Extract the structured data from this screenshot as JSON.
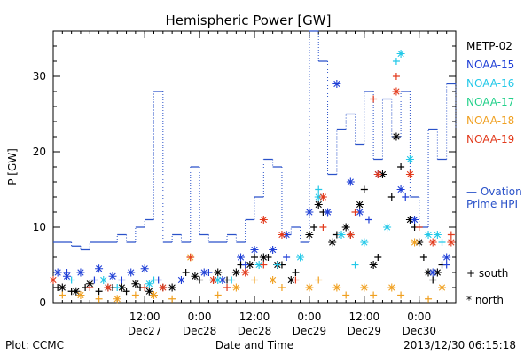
{
  "chart_data": {
    "type": "scatter",
    "title": "Hemispheric Power [GW]",
    "xlabel": "Date and Time",
    "ylabel": "P [GW]",
    "xlim": [
      "2013-12-26 16:00",
      "2013-12-30 08:00"
    ],
    "ylim": [
      0,
      36
    ],
    "yticks": [
      0,
      10,
      20,
      30
    ],
    "xticks": [
      {
        "time": "12:00",
        "date": "Dec27",
        "at": "2013-12-27 12:00"
      },
      {
        "time": "0:00",
        "date": "Dec28",
        "at": "2013-12-28 00:00"
      },
      {
        "time": "12:00",
        "date": "Dec28",
        "at": "2013-12-28 12:00"
      },
      {
        "time": "0:00",
        "date": "Dec29",
        "at": "2013-12-29 00:00"
      },
      {
        "time": "12:00",
        "date": "Dec29",
        "at": "2013-12-29 12:00"
      },
      {
        "time": "0:00",
        "date": "Dec30",
        "at": "2013-12-30 00:00"
      }
    ],
    "legend": {
      "placement": "right",
      "entries": [
        {
          "name": "METP-02",
          "color": "#000000"
        },
        {
          "name": "NOAA-15",
          "color": "#1f3fd6"
        },
        {
          "name": "NOAA-16",
          "color": "#22c8e8"
        },
        {
          "name": "NOAA-17",
          "color": "#22d08a"
        },
        {
          "name": "NOAA-18",
          "color": "#f0a020"
        },
        {
          "name": "NOAA-19",
          "color": "#e23a1c"
        }
      ],
      "ovation_label": [
        "— Ovation",
        "Prime HPI"
      ],
      "south_label": "+ south",
      "north_label": "* north"
    },
    "ovation_line": {
      "color": "#2a52c9",
      "times": [
        "2013-12-26 16:00",
        "2013-12-26 20:00",
        "2013-12-26 22:00",
        "2013-12-27 00:00",
        "2013-12-27 02:00",
        "2013-12-27 04:00",
        "2013-12-27 06:00",
        "2013-12-27 08:00",
        "2013-12-27 10:00",
        "2013-12-27 12:00",
        "2013-12-27 14:00",
        "2013-12-27 16:00",
        "2013-12-27 18:00",
        "2013-12-27 20:00",
        "2013-12-27 22:00",
        "2013-12-28 00:00",
        "2013-12-28 02:00",
        "2013-12-28 04:00",
        "2013-12-28 06:00",
        "2013-12-28 08:00",
        "2013-12-28 10:00",
        "2013-12-28 12:00",
        "2013-12-28 14:00",
        "2013-12-28 16:00",
        "2013-12-28 18:00",
        "2013-12-28 20:00",
        "2013-12-28 22:00",
        "2013-12-29 00:00",
        "2013-12-29 02:00",
        "2013-12-29 04:00",
        "2013-12-29 06:00",
        "2013-12-29 08:00",
        "2013-12-29 10:00",
        "2013-12-29 12:00",
        "2013-12-29 14:00",
        "2013-12-29 16:00",
        "2013-12-29 18:00",
        "2013-12-29 20:00",
        "2013-12-29 22:00",
        "2013-12-30 00:00",
        "2013-12-30 02:00",
        "2013-12-30 04:00",
        "2013-12-30 06:00",
        "2013-12-30 08:00"
      ],
      "values": [
        8,
        7.5,
        7,
        8,
        8,
        8,
        9,
        8,
        10,
        11,
        28,
        8,
        9,
        8,
        18,
        9,
        8,
        8,
        9,
        8,
        11,
        14,
        19,
        18,
        9,
        10,
        8,
        36,
        32,
        17,
        23,
        25,
        21,
        28,
        19,
        27,
        22,
        28,
        14,
        10,
        23,
        19,
        29,
        23
      ]
    },
    "series": [
      {
        "name": "METP-02",
        "color": "#000000",
        "south": [
          [
            "2013-12-26 17:00",
            2
          ],
          [
            "2013-12-26 20:00",
            1.5
          ],
          [
            "2013-12-26 23:00",
            2
          ],
          [
            "2013-12-27 02:00",
            1.5
          ],
          [
            "2013-12-27 05:00",
            2
          ],
          [
            "2013-12-27 08:00",
            1.5
          ],
          [
            "2013-12-27 11:00",
            2
          ],
          [
            "2013-12-27 16:00",
            2
          ],
          [
            "2013-12-27 21:00",
            4
          ],
          [
            "2013-12-28 00:00",
            3
          ],
          [
            "2013-12-28 03:00",
            3
          ],
          [
            "2013-12-28 06:00",
            3
          ],
          [
            "2013-12-28 09:00",
            5
          ],
          [
            "2013-12-28 12:00",
            6
          ],
          [
            "2013-12-28 15:00",
            6
          ],
          [
            "2013-12-28 18:00",
            5
          ],
          [
            "2013-12-28 21:00",
            4
          ],
          [
            "2013-12-29 01:00",
            10
          ],
          [
            "2013-12-29 03:00",
            12
          ],
          [
            "2013-12-29 06:00",
            9
          ],
          [
            "2013-12-29 09:00",
            9
          ],
          [
            "2013-12-29 12:00",
            15
          ],
          [
            "2013-12-29 15:00",
            6
          ],
          [
            "2013-12-29 18:00",
            14
          ],
          [
            "2013-12-29 20:00",
            18
          ],
          [
            "2013-12-29 23:00",
            10
          ],
          [
            "2013-12-30 01:00",
            6
          ],
          [
            "2013-12-30 03:00",
            3
          ],
          [
            "2013-12-30 05:00",
            5
          ]
        ],
        "north": [
          [
            "2013-12-26 18:00",
            2
          ],
          [
            "2013-12-26 21:00",
            1.5
          ],
          [
            "2013-12-27 00:00",
            2.5
          ],
          [
            "2013-12-27 04:00",
            2
          ],
          [
            "2013-12-27 07:00",
            2
          ],
          [
            "2013-12-27 10:00",
            2.5
          ],
          [
            "2013-12-27 13:00",
            1.5
          ],
          [
            "2013-12-27 18:00",
            2
          ],
          [
            "2013-12-27 23:00",
            3.5
          ],
          [
            "2013-12-28 04:00",
            4
          ],
          [
            "2013-12-28 08:00",
            4
          ],
          [
            "2013-12-28 11:00",
            5
          ],
          [
            "2013-12-28 14:00",
            6
          ],
          [
            "2013-12-28 17:00",
            5
          ],
          [
            "2013-12-28 20:00",
            3
          ],
          [
            "2013-12-29 00:00",
            9
          ],
          [
            "2013-12-29 02:00",
            13
          ],
          [
            "2013-12-29 05:00",
            8
          ],
          [
            "2013-12-29 08:00",
            10
          ],
          [
            "2013-12-29 11:00",
            13
          ],
          [
            "2013-12-29 14:00",
            5
          ],
          [
            "2013-12-29 16:00",
            17
          ],
          [
            "2013-12-29 19:00",
            22
          ],
          [
            "2013-12-29 22:00",
            11
          ],
          [
            "2013-12-30 00:00",
            8
          ],
          [
            "2013-12-30 02:00",
            4
          ],
          [
            "2013-12-30 04:00",
            4
          ]
        ]
      },
      {
        "name": "NOAA-15",
        "color": "#1f3fd6",
        "south": [
          [
            "2013-12-26 19:00",
            4
          ],
          [
            "2013-12-27 01:00",
            3
          ],
          [
            "2013-12-27 07:00",
            3
          ],
          [
            "2013-12-27 15:00",
            3
          ],
          [
            "2013-12-28 02:00",
            4
          ],
          [
            "2013-12-28 10:00",
            5
          ],
          [
            "2013-12-28 19:00",
            6
          ],
          [
            "2013-12-29 04:00",
            12
          ],
          [
            "2013-12-29 13:00",
            11
          ],
          [
            "2013-12-29 21:00",
            14
          ],
          [
            "2013-12-30 06:00",
            5
          ]
        ],
        "north": [
          [
            "2013-12-26 17:00",
            4
          ],
          [
            "2013-12-26 19:00",
            3.5
          ],
          [
            "2013-12-26 22:00",
            4
          ],
          [
            "2013-12-27 02:00",
            4.5
          ],
          [
            "2013-12-27 05:00",
            3.5
          ],
          [
            "2013-12-27 09:00",
            4
          ],
          [
            "2013-12-27 12:00",
            4.5
          ],
          [
            "2013-12-27 20:00",
            3
          ],
          [
            "2013-12-28 01:00",
            4
          ],
          [
            "2013-12-28 05:00",
            3
          ],
          [
            "2013-12-28 09:00",
            6
          ],
          [
            "2013-12-28 12:00",
            7
          ],
          [
            "2013-12-28 16:00",
            7
          ],
          [
            "2013-12-28 19:00",
            9
          ],
          [
            "2013-12-29 00:00",
            12
          ],
          [
            "2013-12-29 04:00",
            12
          ],
          [
            "2013-12-29 06:00",
            29
          ],
          [
            "2013-12-29 09:00",
            16
          ],
          [
            "2013-12-29 11:00",
            12
          ],
          [
            "2013-12-29 15:00",
            17
          ],
          [
            "2013-12-29 20:00",
            15
          ],
          [
            "2013-12-29 23:00",
            11
          ],
          [
            "2013-12-30 03:00",
            4
          ],
          [
            "2013-12-30 06:00",
            6
          ]
        ]
      },
      {
        "name": "NOAA-16",
        "color": "#22c8e8",
        "south": [
          [
            "2013-12-26 20:00",
            3
          ],
          [
            "2013-12-27 06:00",
            2
          ],
          [
            "2013-12-27 14:00",
            3
          ],
          [
            "2013-12-28 07:00",
            3
          ],
          [
            "2013-12-28 17:00",
            5
          ],
          [
            "2013-12-29 02:00",
            15
          ],
          [
            "2013-12-29 10:00",
            5
          ],
          [
            "2013-12-29 19:00",
            32
          ],
          [
            "2013-12-30 05:00",
            8
          ]
        ],
        "north": [
          [
            "2013-12-27 03:00",
            3
          ],
          [
            "2013-12-27 13:00",
            2.5
          ],
          [
            "2013-12-28 04:00",
            3
          ],
          [
            "2013-12-28 13:00",
            5
          ],
          [
            "2013-12-28 22:00",
            6
          ],
          [
            "2013-12-29 02:00",
            14
          ],
          [
            "2013-12-29 07:00",
            9
          ],
          [
            "2013-12-29 12:00",
            8
          ],
          [
            "2013-12-29 17:00",
            10
          ],
          [
            "2013-12-29 20:00",
            33
          ],
          [
            "2013-12-29 22:00",
            19
          ],
          [
            "2013-12-30 02:00",
            9
          ],
          [
            "2013-12-30 04:00",
            9
          ]
        ]
      },
      {
        "name": "NOAA-18",
        "color": "#f0a020",
        "south": [
          [
            "2013-12-26 18:00",
            1
          ],
          [
            "2013-12-27 02:00",
            0.5
          ],
          [
            "2013-12-27 10:00",
            1
          ],
          [
            "2013-12-27 18:00",
            0.5
          ],
          [
            "2013-12-28 04:00",
            1
          ],
          [
            "2013-12-28 12:00",
            3
          ],
          [
            "2013-12-28 18:00",
            2
          ],
          [
            "2013-12-29 02:00",
            3
          ],
          [
            "2013-12-29 08:00",
            1
          ],
          [
            "2013-12-29 14:00",
            1
          ],
          [
            "2013-12-29 20:00",
            1
          ],
          [
            "2013-12-30 02:00",
            0.5
          ]
        ],
        "north": [
          [
            "2013-12-26 22:00",
            1
          ],
          [
            "2013-12-27 06:00",
            0.5
          ],
          [
            "2013-12-27 14:00",
            1
          ],
          [
            "2013-12-27 22:00",
            6
          ],
          [
            "2013-12-28 08:00",
            2
          ],
          [
            "2013-12-28 16:00",
            3
          ],
          [
            "2013-12-29 00:00",
            2
          ],
          [
            "2013-12-29 06:00",
            2
          ],
          [
            "2013-12-29 12:00",
            2
          ],
          [
            "2013-12-29 18:00",
            2
          ],
          [
            "2013-12-29 23:00",
            8
          ],
          [
            "2013-12-30 05:00",
            2
          ]
        ]
      },
      {
        "name": "NOAA-19",
        "color": "#e23a1c",
        "south": [
          [
            "2013-12-27 00:00",
            2
          ],
          [
            "2013-12-27 12:00",
            2
          ],
          [
            "2013-12-27 22:00",
            6
          ],
          [
            "2013-12-28 06:00",
            2
          ],
          [
            "2013-12-28 14:00",
            5
          ],
          [
            "2013-12-28 21:00",
            3
          ],
          [
            "2013-12-29 03:00",
            10
          ],
          [
            "2013-12-29 10:00",
            12
          ],
          [
            "2013-12-29 14:00",
            27
          ],
          [
            "2013-12-29 19:00",
            30
          ],
          [
            "2013-12-30 00:00",
            10
          ],
          [
            "2013-12-30 07:00",
            9
          ]
        ],
        "north": [
          [
            "2013-12-26 16:00",
            3
          ],
          [
            "2013-12-27 04:00",
            2
          ],
          [
            "2013-12-27 16:00",
            2
          ],
          [
            "2013-12-28 03:00",
            3
          ],
          [
            "2013-12-28 10:00",
            4
          ],
          [
            "2013-12-28 14:00",
            11
          ],
          [
            "2013-12-28 18:00",
            9
          ],
          [
            "2013-12-29 03:00",
            14
          ],
          [
            "2013-12-29 09:00",
            9
          ],
          [
            "2013-12-29 15:00",
            17
          ],
          [
            "2013-12-29 19:00",
            28
          ],
          [
            "2013-12-29 22:00",
            17
          ],
          [
            "2013-12-30 03:00",
            8
          ],
          [
            "2013-12-30 07:00",
            8
          ]
        ]
      }
    ]
  },
  "footer": {
    "plot_credit": "Plot: CCMC",
    "timestamp": "2013/12/30 06:15:18"
  }
}
